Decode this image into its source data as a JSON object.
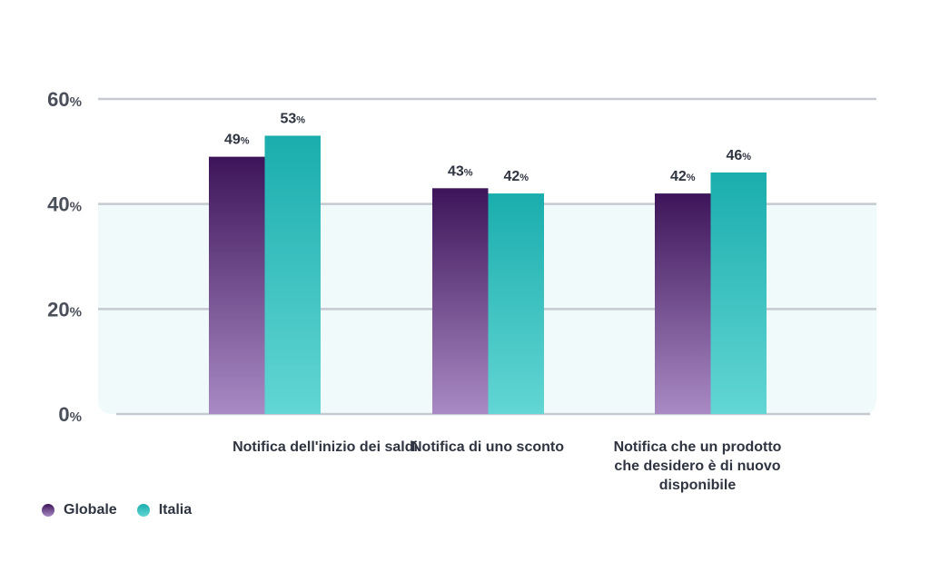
{
  "chart_data": {
    "type": "bar",
    "categories": [
      "Notifica dell'inizio dei saldi",
      "Notifica di uno sconto",
      "Notifica che un prodotto che desidero è di nuovo disponibile"
    ],
    "series": [
      {
        "name": "Globale",
        "values": [
          49,
          43,
          42
        ],
        "color_top": "#3d1459",
        "color_bottom": "#a98ac4"
      },
      {
        "name": "Italia",
        "values": [
          53,
          42,
          46
        ],
        "color_top": "#1aadad",
        "color_bottom": "#62d6d4"
      }
    ],
    "ylim": [
      0,
      60
    ],
    "yticks": [
      0,
      20,
      40,
      60
    ],
    "tick_suffix": "%",
    "grid": true,
    "legend": "bottom-left",
    "xlabel": "",
    "ylabel": "",
    "title": ""
  }
}
